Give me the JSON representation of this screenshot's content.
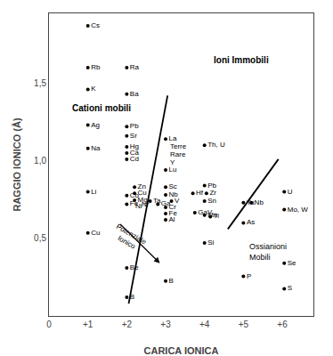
{
  "chart_data": {
    "type": "scatter",
    "xlabel": "CARICA IONICA",
    "ylabel": "RAGGIO IONICO (Å)",
    "xlim": [
      0,
      6.8
    ],
    "ylim": [
      0,
      1.95
    ],
    "xticks": [
      0,
      {
        "value": 1,
        "label": "+1"
      },
      {
        "value": 2,
        "label": "+2"
      },
      {
        "value": 3,
        "label": "+3"
      },
      {
        "value": 4,
        "label": "+4"
      },
      {
        "value": 5,
        "label": "+5"
      },
      {
        "value": 6,
        "label": "+6"
      }
    ],
    "yticks": [
      {
        "value": 0.5,
        "label": "0,5"
      },
      {
        "value": 1.0,
        "label": "1,0"
      },
      {
        "value": 1.5,
        "label": "1,5"
      }
    ],
    "grid": false,
    "color": "black",
    "marker": "circle",
    "labels": [
      "Cs",
      "Rb",
      "K",
      "Ra",
      "Ba",
      "Ag",
      "Pb",
      "Sr",
      "Na",
      "Hg",
      "Ca",
      "Cd",
      "La",
      "Lu",
      "Th, U",
      "Li",
      "Zn",
      "Cu",
      "Co",
      "Mg",
      "Fe",
      "Ta",
      "Ga",
      "Sc",
      "Nb",
      "V",
      "Cr",
      "Fe",
      "Al",
      "Pb",
      "Zr",
      "Hf",
      "Sn",
      "GaV",
      "Mn",
      "Ti",
      "Ta",
      "Nb",
      "U",
      "Mo, W",
      "As",
      "Si",
      "Cu",
      "Be",
      "B",
      "B",
      "Se",
      "P",
      "S"
    ],
    "x": [
      1.0,
      1.0,
      1.0,
      2.0,
      2.0,
      1.0,
      2.0,
      2.0,
      1.0,
      2.0,
      2.0,
      2.0,
      3.0,
      3.0,
      4.0,
      1.0,
      2.2,
      2.2,
      2.0,
      2.2,
      2.0,
      2.6,
      2.8,
      3.0,
      3.0,
      3.15,
      3.0,
      3.0,
      3.0,
      4.0,
      4.05,
      3.7,
      4.0,
      3.75,
      4.0,
      4.15,
      5.0,
      5.2,
      6.05,
      6.05,
      5.0,
      4.0,
      1.0,
      2.0,
      3.0,
      2.0,
      6.05,
      5.0,
      6.05
    ],
    "values": [
      1.87,
      1.6,
      1.46,
      1.6,
      1.43,
      1.23,
      1.22,
      1.16,
      1.08,
      1.09,
      1.05,
      1.01,
      1.14,
      0.94,
      1.1,
      0.8,
      0.83,
      0.79,
      0.775,
      0.745,
      0.72,
      0.74,
      0.72,
      0.83,
      0.78,
      0.74,
      0.7,
      0.66,
      0.62,
      0.84,
      0.79,
      0.79,
      0.74,
      0.665,
      0.65,
      0.64,
      0.73,
      0.73,
      0.8,
      0.685,
      0.6,
      0.47,
      0.535,
      0.31,
      0.225,
      0.12,
      0.34,
      0.255,
      0.175
    ],
    "text_labels": [
      {
        "text": "Terre",
        "x": 3.08,
        "y": 1.09
      },
      {
        "text": "Rare",
        "x": 3.08,
        "y": 1.04
      },
      {
        "text": "Y",
        "x": 3.08,
        "y": 0.99
      },
      {
        "text": "Ni",
        "x": 2.2,
        "y": 0.71
      },
      {
        "text": "Nr",
        "x": 2.35,
        "y": 0.72
      }
    ],
    "lines": [
      {
        "x": [
          2.05,
          3.05
        ],
        "y": [
          0.08,
          1.42
        ]
      },
      {
        "x": [
          4.6,
          5.9
        ],
        "y": [
          0.56,
          1.01
        ]
      }
    ],
    "arrow": {
      "x": [
        1.8,
        2.85
      ],
      "y": [
        0.6,
        0.34
      ],
      "text": "Potenziale\nIonico",
      "text_x": 2.05,
      "text_y": 0.5
    },
    "region_labels": [
      {
        "text": "Cationi mobili",
        "x": 0.55,
        "y": 1.34
      },
      {
        "text": "Ioni Immobili",
        "x": 4.2,
        "y": 1.65
      }
    ],
    "annotations": [
      {
        "text": "Ossianioni\nMobili",
        "x": 5.1,
        "y": 0.415
      }
    ]
  }
}
